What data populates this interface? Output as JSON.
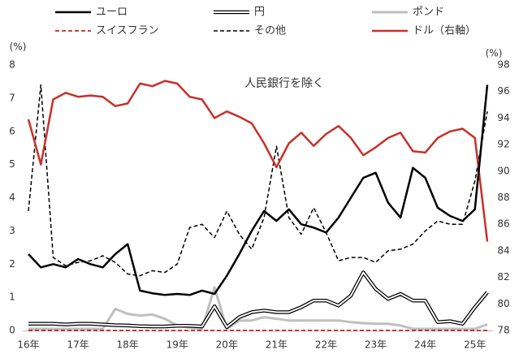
{
  "chart_data": {
    "type": "line",
    "annotation": "人民銀行を除く",
    "ylabel": "(%)",
    "y2label": "(%)",
    "categories": [
      "16年",
      null,
      null,
      null,
      "17年",
      null,
      null,
      null,
      "18年",
      null,
      null,
      null,
      "19年",
      null,
      null,
      null,
      "20年",
      null,
      null,
      null,
      "21年",
      null,
      null,
      null,
      "22年",
      null,
      null,
      null,
      "23年",
      null,
      null,
      null,
      "24年",
      null,
      null,
      null,
      "25年",
      null
    ],
    "ylim": [
      0,
      8
    ],
    "yticks": [
      0,
      1,
      2,
      3,
      4,
      5,
      6,
      7,
      8
    ],
    "y2lim": [
      78,
      98
    ],
    "y2ticks": [
      78,
      80,
      82,
      84,
      86,
      88,
      90,
      92,
      94,
      96,
      98
    ],
    "series": [
      {
        "name": "ユーロ",
        "color": "#000000",
        "style": "solid",
        "values": [
          2.3,
          1.9,
          2.0,
          1.9,
          2.15,
          2.0,
          1.9,
          2.3,
          2.6,
          1.2,
          1.12,
          1.07,
          1.1,
          1.07,
          1.2,
          1.1,
          1.65,
          2.3,
          3.0,
          3.6,
          3.3,
          3.65,
          3.2,
          3.1,
          2.95,
          3.4,
          4.0,
          4.6,
          4.75,
          3.85,
          3.4,
          4.9,
          4.6,
          3.7,
          3.45,
          3.3,
          3.65,
          7.4
        ]
      },
      {
        "name": "円",
        "color": "#000000",
        "style": "double",
        "values": [
          0.2,
          0.2,
          0.2,
          0.18,
          0.2,
          0.2,
          0.18,
          0.16,
          0.15,
          0.13,
          0.12,
          0.12,
          0.14,
          0.14,
          0.12,
          0.73,
          0.1,
          0.4,
          0.55,
          0.6,
          0.55,
          0.55,
          0.7,
          0.9,
          0.9,
          0.75,
          1.05,
          1.75,
          1.25,
          0.95,
          1.1,
          0.9,
          0.9,
          0.25,
          0.28,
          0.2,
          0.7,
          1.15
        ]
      },
      {
        "name": "ポンド",
        "color": "#bfbfbf",
        "style": "solid",
        "values": [
          0.05,
          0.05,
          0.05,
          0.05,
          0.05,
          0.05,
          0.05,
          0.65,
          0.5,
          0.45,
          0.48,
          0.35,
          0.15,
          0.08,
          0.05,
          1.3,
          0.05,
          0.3,
          0.3,
          0.4,
          0.35,
          0.3,
          0.3,
          0.3,
          0.3,
          0.3,
          0.25,
          0.22,
          0.2,
          0.2,
          0.15,
          0.05,
          0.05,
          0.05,
          0.05,
          0.05,
          0.05,
          0.18
        ]
      },
      {
        "name": "スイスフラン",
        "color": "#c00000",
        "style": "dashed",
        "values": [
          0,
          0,
          0,
          0,
          0,
          0,
          0,
          0,
          0,
          0,
          0,
          0,
          0,
          0,
          0,
          0,
          0,
          0,
          0,
          0,
          0,
          0,
          0,
          0,
          0,
          0,
          0,
          0,
          0,
          0,
          0,
          0,
          0,
          0,
          0,
          0,
          0,
          0
        ]
      },
      {
        "name": "その他",
        "color": "#000000",
        "style": "dashed",
        "values": [
          3.6,
          7.4,
          2.2,
          1.95,
          2.05,
          2.1,
          2.25,
          2.05,
          1.7,
          1.65,
          1.8,
          1.75,
          2.0,
          3.1,
          3.2,
          2.8,
          3.6,
          2.9,
          2.45,
          3.4,
          5.55,
          3.4,
          2.9,
          3.7,
          2.95,
          2.1,
          2.2,
          2.2,
          2.05,
          2.4,
          2.45,
          2.6,
          3.0,
          3.3,
          3.2,
          3.2,
          4.5,
          6.6
        ]
      },
      {
        "name": "ドル（右軸）",
        "color": "#c8302a",
        "style": "solid",
        "axis": "y2",
        "values": [
          93.9,
          90.5,
          95.4,
          95.9,
          95.6,
          95.7,
          95.6,
          94.9,
          95.1,
          96.6,
          96.4,
          96.8,
          96.6,
          95.6,
          95.4,
          94.0,
          94.5,
          94.1,
          93.6,
          92.1,
          90.3,
          92.1,
          92.9,
          91.9,
          92.8,
          93.4,
          92.5,
          91.2,
          91.8,
          92.5,
          92.9,
          91.5,
          91.4,
          92.5,
          93.0,
          93.2,
          92.5,
          84.7
        ]
      }
    ]
  }
}
